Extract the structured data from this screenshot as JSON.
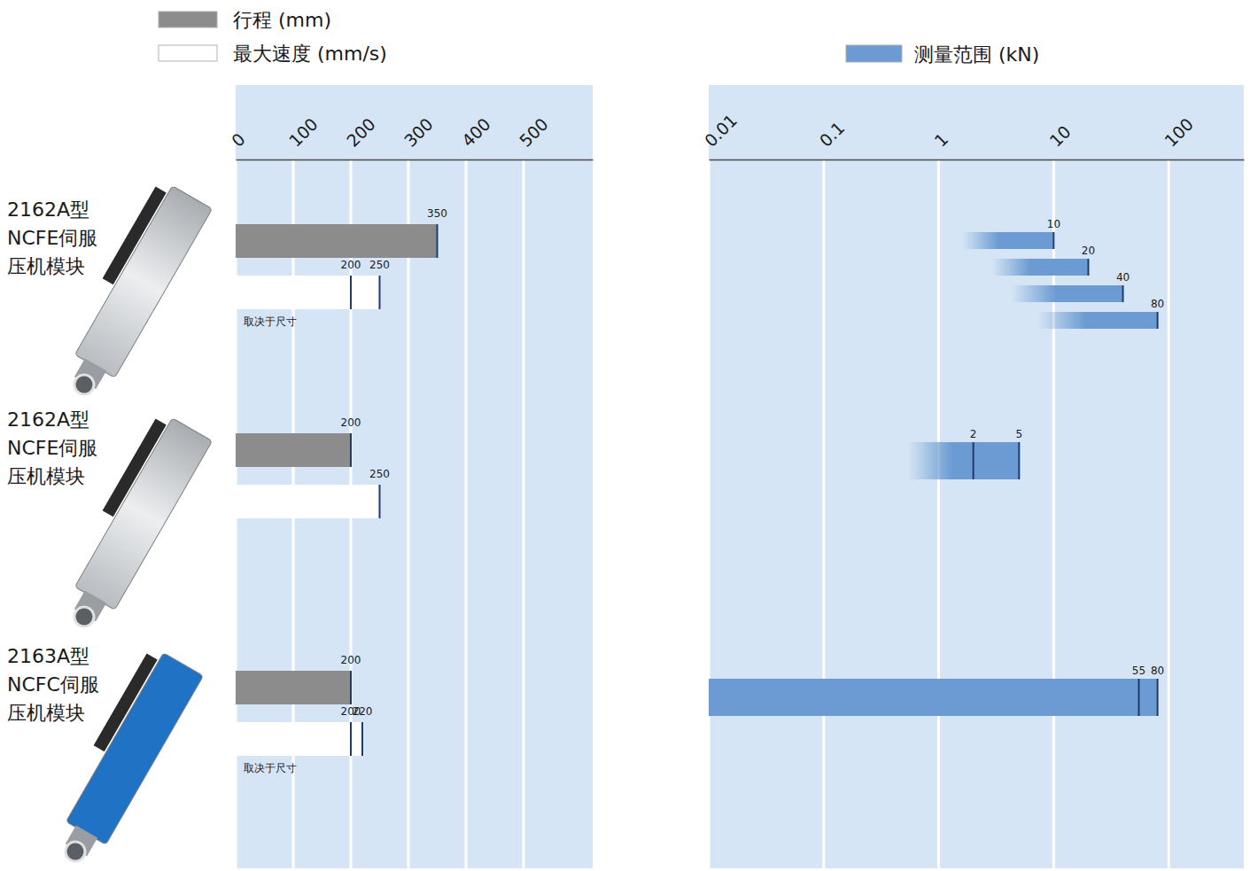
{
  "chart_data": [
    {
      "type": "bar",
      "orientation": "horizontal",
      "categories": [
        "2162A型\nNCFE伺服\n压机模块",
        "2162A型\nNCFE伺服\n压机模块",
        "2163A型\nNCFC伺服\n压机模块"
      ],
      "series": [
        {
          "name": "行程 (mm)",
          "color": "#8c8c8c",
          "values": [
            350,
            200,
            200
          ]
        },
        {
          "name": "最大速度 (mm/s)",
          "color": "#ffffff",
          "values": [
            250,
            250,
            220
          ],
          "low": [
            200,
            null,
            200
          ]
        }
      ],
      "notes": [
        "取决于尺寸",
        null,
        "取决于尺寸"
      ],
      "xlim": [
        0,
        620
      ],
      "xticks": [
        0,
        100,
        200,
        300,
        400,
        500
      ],
      "grid": true,
      "data_labels": true,
      "legend": "top"
    },
    {
      "type": "range_bar",
      "orientation": "horizontal",
      "log": "x",
      "xlim": [
        0.01,
        450
      ],
      "xticks": [
        0.01,
        0.1,
        1,
        10,
        100
      ],
      "grid": true,
      "data_labels": true,
      "legend": "top",
      "series": [
        {
          "name": "测量范围 (kN)",
          "color": "#6b9bd2",
          "bars": [
            {
              "row": 0,
              "low": 1.6,
              "values": [
                10
              ]
            },
            {
              "row": 0,
              "low": 2.9,
              "values": [
                20
              ]
            },
            {
              "row": 0,
              "low": 4.3,
              "values": [
                40
              ]
            },
            {
              "row": 0,
              "low": 7.3,
              "values": [
                80
              ]
            },
            {
              "row": 1,
              "low": 0.54,
              "values": [
                2,
                5
              ]
            },
            {
              "row": 2,
              "low": 0.01,
              "values": [
                55,
                80
              ]
            }
          ]
        }
      ]
    }
  ]
}
